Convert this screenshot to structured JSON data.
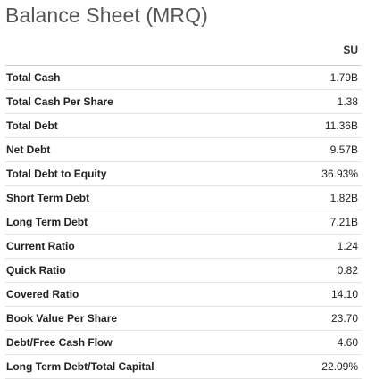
{
  "title": "Balance Sheet (MRQ)",
  "ticker": "SU",
  "rows": [
    {
      "label": "Total Cash",
      "value": "1.79B"
    },
    {
      "label": "Total Cash Per Share",
      "value": "1.38"
    },
    {
      "label": "Total Debt",
      "value": "11.36B"
    },
    {
      "label": "Net Debt",
      "value": "9.57B"
    },
    {
      "label": "Total Debt to Equity",
      "value": "36.93%"
    },
    {
      "label": "Short Term Debt",
      "value": "1.82B"
    },
    {
      "label": "Long Term Debt",
      "value": "7.21B"
    },
    {
      "label": "Current Ratio",
      "value": "1.24"
    },
    {
      "label": "Quick Ratio",
      "value": "0.82"
    },
    {
      "label": "Covered Ratio",
      "value": "14.10"
    },
    {
      "label": "Book Value Per Share",
      "value": "23.70"
    },
    {
      "label": "Debt/Free Cash Flow",
      "value": "4.60"
    },
    {
      "label": "Long Term Debt/Total Capital",
      "value": "22.09%"
    }
  ]
}
